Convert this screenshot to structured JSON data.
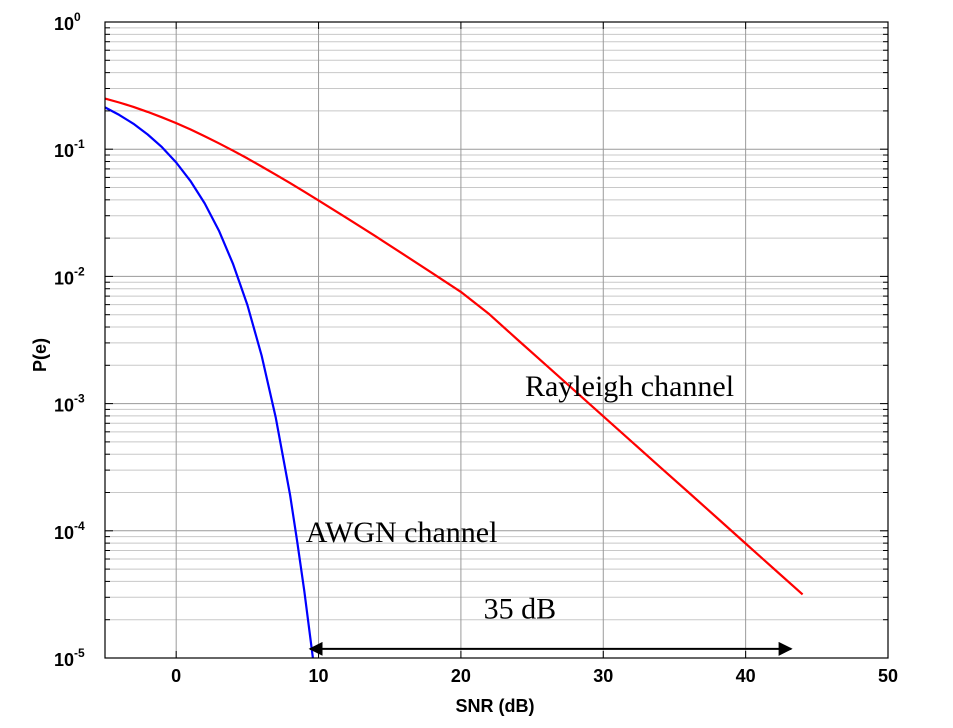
{
  "chart_data": {
    "type": "line",
    "xlabel": "SNR (dB)",
    "ylabel": "P(e)",
    "xlim": [
      -5,
      50
    ],
    "ylim": [
      1e-05,
      1
    ],
    "y_scale": "log",
    "grid": true,
    "x_ticks": [
      0,
      10,
      20,
      30,
      40,
      50
    ],
    "y_ticks": [
      {
        "base": "10",
        "exp": "0",
        "value": 1
      },
      {
        "base": "10",
        "exp": "-1",
        "value": 0.1
      },
      {
        "base": "10",
        "exp": "-2",
        "value": 0.01
      },
      {
        "base": "10",
        "exp": "-3",
        "value": 0.001
      },
      {
        "base": "10",
        "exp": "-4",
        "value": 0.0001
      },
      {
        "base": "10",
        "exp": "-5",
        "value": 1e-05
      }
    ],
    "series": [
      {
        "name": "Rayleigh channel",
        "color": "#ff0000",
        "x": [
          -5,
          -4,
          -3,
          -2,
          -1,
          0,
          1,
          2,
          3,
          4,
          5,
          6,
          7,
          8,
          9,
          10,
          12,
          14,
          16,
          18,
          20,
          22,
          24,
          26,
          28,
          30,
          32,
          34,
          36,
          38,
          40,
          42,
          44
        ],
        "y": [
          0.2498,
          0.2328,
          0.2149,
          0.1966,
          0.1783,
          0.1603,
          0.143,
          0.1266,
          0.1113,
          0.0973,
          0.0846,
          0.0731,
          0.063,
          0.0541,
          0.0463,
          0.0396,
          0.0287,
          0.0207,
          0.0148,
          0.0106,
          0.00756,
          0.00504,
          0.00316,
          0.002,
          0.00126,
          0.000795,
          0.000502,
          0.000316,
          0.0002,
          0.000126,
          7.94e-05,
          5.01e-05,
          3.16e-05
        ]
      },
      {
        "name": "AWGN channel",
        "color": "#0000ff",
        "x": [
          -5,
          -4,
          -3,
          -2,
          -1,
          0,
          1,
          2,
          3,
          4,
          5,
          6,
          7,
          8,
          8.5,
          9,
          9.6
        ],
        "y": [
          0.2132,
          0.1861,
          0.1584,
          0.1306,
          0.1038,
          0.0786,
          0.0563,
          0.0375,
          0.0229,
          0.0125,
          0.00596,
          0.00239,
          0.000773,
          0.000191,
          8.23e-05,
          3.36e-05,
          1e-05
        ]
      }
    ],
    "annotations": [
      {
        "text": "Rayleigh channel",
        "x": 24.5,
        "y": 0.00115
      },
      {
        "text": "AWGN channel",
        "x": 9.1,
        "y": 8.2e-05
      },
      {
        "text": "35 dB",
        "x": 21.6,
        "y": 2.05e-05
      }
    ],
    "arrow": {
      "x_start": 9.4,
      "x_end": 43.2,
      "y": 1.18e-05
    }
  }
}
